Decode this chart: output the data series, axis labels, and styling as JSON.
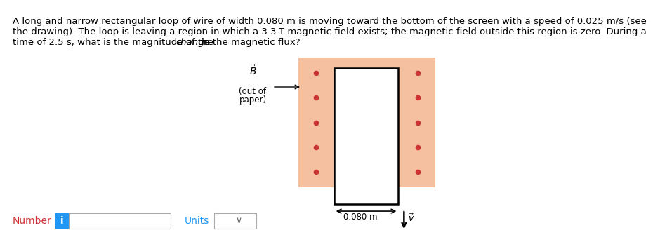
{
  "background_color": "#ffffff",
  "line1": "A long and narrow rectangular loop of wire of width 0.080 m is moving toward the bottom of the screen with a speed of 0.025 m/s (see",
  "line2": "the drawing). The loop is leaving a region in which a 3.3-T magnetic field exists; the magnetic field outside this region is zero. During a",
  "line3_pre": "time of 2.5 s, what is the magnitude of the ",
  "line3_italic": "change",
  "line3_post": " in the magnetic flux?",
  "field_color": "#f5c0a0",
  "dot_color": "#cc3333",
  "loop_color": "#000000",
  "text_fontsize": 9.5,
  "annot_fontsize": 8.5,
  "number_color": "#cc3333",
  "units_color": "#2196F3",
  "ibutton_color": "#2196F3"
}
